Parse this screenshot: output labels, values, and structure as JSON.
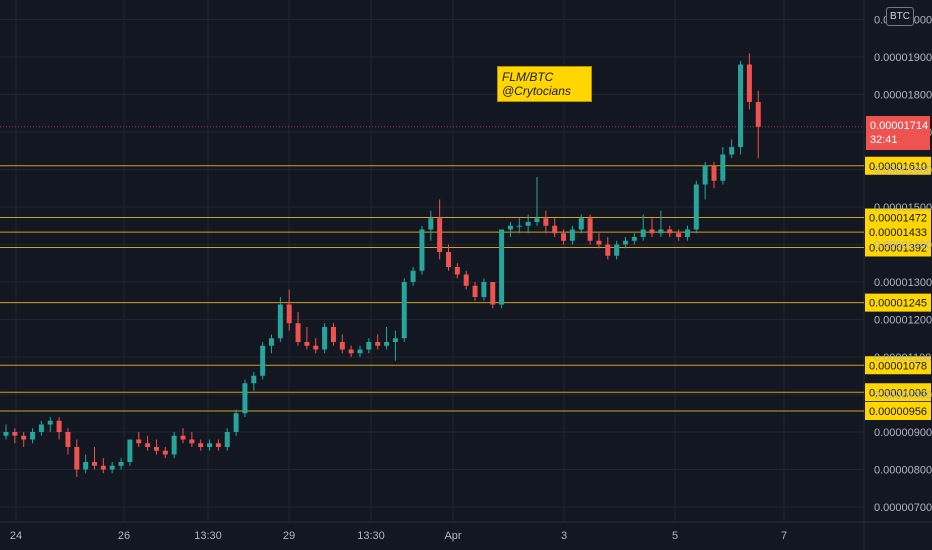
{
  "symbol_button": "BTC",
  "annotation": {
    "line1": "FLM/BTC",
    "line2": "@Crytocians"
  },
  "current_price": {
    "price": "0.00001714",
    "countdown": "32:41"
  },
  "colors": {
    "up": "#26a69a",
    "down": "#ef5350",
    "level": "#d4a017",
    "level_label": "#ffd600",
    "grid": "#1f2430",
    "bg": "#131722"
  },
  "chart_data": {
    "type": "candlestick",
    "title": "",
    "xlabel": "",
    "ylabel": "",
    "ylim": [
      6.8e-06,
      2.05e-05
    ],
    "x_ticks": [
      "24",
      "26",
      "13:30",
      "29",
      "13:30",
      "Apr",
      "3",
      "5",
      "7"
    ],
    "y_ticks": [
      "0.00000700",
      "0.00000800",
      "0.00000900",
      "0.00001000",
      "0.00001100",
      "0.00001200",
      "0.00001300",
      "0.00001400",
      "0.00001500",
      "0.00001600",
      "0.00001700",
      "0.00001800",
      "0.00001900",
      "0.00002000"
    ],
    "y_tick_values": [
      7e-06,
      8e-06,
      9e-06,
      1e-05,
      1.1e-05,
      1.2e-05,
      1.3e-05,
      1.4e-05,
      1.5e-05,
      1.6e-05,
      1.7e-05,
      1.8e-05,
      1.9e-05,
      2e-05
    ],
    "levels": [
      "0.00001610",
      "0.00001472",
      "0.00001433",
      "0.00001392",
      "0.00001245",
      "0.00001078",
      "0.00001006",
      "0.00000956"
    ],
    "level_values": [
      1.61e-05,
      1.472e-05,
      1.433e-05,
      1.392e-05,
      1.245e-05,
      1.078e-05,
      1.006e-05,
      9.56e-06
    ],
    "candles": [
      [
        8.9e-06,
        9.2e-06,
        8.8e-06,
        9e-06
      ],
      [
        9e-06,
        9.1e-06,
        8.7e-06,
        8.9e-06
      ],
      [
        8.9e-06,
        9e-06,
        8.6e-06,
        8.8e-06
      ],
      [
        8.8e-06,
        9.1e-06,
        8.7e-06,
        9e-06
      ],
      [
        9e-06,
        9.3e-06,
        8.9e-06,
        9.2e-06
      ],
      [
        9.2e-06,
        9.4e-06,
        9e-06,
        9.3e-06
      ],
      [
        9.3e-06,
        9.4e-06,
        8.8e-06,
        9e-06
      ],
      [
        9e-06,
        9.1e-06,
        8.4e-06,
        8.6e-06
      ],
      [
        8.6e-06,
        8.8e-06,
        7.8e-06,
        8e-06
      ],
      [
        8e-06,
        8.4e-06,
        7.9e-06,
        8.2e-06
      ],
      [
        8.2e-06,
        8.6e-06,
        8e-06,
        8.1e-06
      ],
      [
        8.1e-06,
        8.3e-06,
        7.9e-06,
        8e-06
      ],
      [
        8e-06,
        8.2e-06,
        7.9e-06,
        8.1e-06
      ],
      [
        8.1e-06,
        8.3e-06,
        8e-06,
        8.2e-06
      ],
      [
        8.2e-06,
        8.8e-06,
        8.1e-06,
        8.8e-06
      ],
      [
        8.8e-06,
        9e-06,
        8.6e-06,
        8.7e-06
      ],
      [
        8.7e-06,
        8.9e-06,
        8.5e-06,
        8.6e-06
      ],
      [
        8.6e-06,
        8.8e-06,
        8.4e-06,
        8.5e-06
      ],
      [
        8.5e-06,
        8.6e-06,
        8.3e-06,
        8.4e-06
      ],
      [
        8.4e-06,
        9e-06,
        8.3e-06,
        8.9e-06
      ],
      [
        8.9e-06,
        9.1e-06,
        8.7e-06,
        8.8e-06
      ],
      [
        8.8e-06,
        9e-06,
        8.6e-06,
        8.7e-06
      ],
      [
        8.7e-06,
        8.8e-06,
        8.5e-06,
        8.6e-06
      ],
      [
        8.6e-06,
        8.8e-06,
        8.5e-06,
        8.7e-06
      ],
      [
        8.7e-06,
        8.8e-06,
        8.5e-06,
        8.6e-06
      ],
      [
        8.6e-06,
        9.1e-06,
        8.5e-06,
        9e-06
      ],
      [
        9e-06,
        9.6e-06,
        8.9e-06,
        9.5e-06
      ],
      [
        9.5e-06,
        1.04e-05,
        9.4e-06,
        1.03e-05
      ],
      [
        1.03e-05,
        1.06e-05,
        1.01e-05,
        1.05e-05
      ],
      [
        1.05e-05,
        1.14e-05,
        1.04e-05,
        1.13e-05
      ],
      [
        1.13e-05,
        1.16e-05,
        1.11e-05,
        1.15e-05
      ],
      [
        1.15e-05,
        1.26e-05,
        1.14e-05,
        1.24e-05
      ],
      [
        1.24e-05,
        1.28e-05,
        1.17e-05,
        1.19e-05
      ],
      [
        1.19e-05,
        1.22e-05,
        1.13e-05,
        1.14e-05
      ],
      [
        1.14e-05,
        1.18e-05,
        1.12e-05,
        1.13e-05
      ],
      [
        1.13e-05,
        1.15e-05,
        1.11e-05,
        1.12e-05
      ],
      [
        1.12e-05,
        1.19e-05,
        1.11e-05,
        1.18e-05
      ],
      [
        1.18e-05,
        1.19e-05,
        1.13e-05,
        1.14e-05
      ],
      [
        1.14e-05,
        1.16e-05,
        1.11e-05,
        1.12e-05
      ],
      [
        1.12e-05,
        1.13e-05,
        1.1e-05,
        1.11e-05
      ],
      [
        1.11e-05,
        1.13e-05,
        1.1e-05,
        1.12e-05
      ],
      [
        1.12e-05,
        1.15e-05,
        1.11e-05,
        1.14e-05
      ],
      [
        1.14e-05,
        1.16e-05,
        1.12e-05,
        1.13e-05
      ],
      [
        1.13e-05,
        1.18e-05,
        1.12e-05,
        1.14e-05
      ],
      [
        1.14e-05,
        1.17e-05,
        1.09e-05,
        1.15e-05
      ],
      [
        1.15e-05,
        1.31e-05,
        1.14e-05,
        1.3e-05
      ],
      [
        1.3e-05,
        1.34e-05,
        1.29e-05,
        1.33e-05
      ],
      [
        1.33e-05,
        1.45e-05,
        1.32e-05,
        1.44e-05
      ],
      [
        1.44e-05,
        1.49e-05,
        1.41e-05,
        1.47e-05
      ],
      [
        1.47e-05,
        1.52e-05,
        1.36e-05,
        1.38e-05
      ],
      [
        1.38e-05,
        1.4e-05,
        1.33e-05,
        1.34e-05
      ],
      [
        1.34e-05,
        1.35e-05,
        1.31e-05,
        1.32e-05
      ],
      [
        1.32e-05,
        1.33e-05,
        1.28e-05,
        1.29e-05
      ],
      [
        1.29e-05,
        1.3e-05,
        1.25e-05,
        1.26e-05
      ],
      [
        1.26e-05,
        1.31e-05,
        1.25e-05,
        1.3e-05
      ],
      [
        1.3e-05,
        1.3e-05,
        1.23e-05,
        1.24e-05
      ],
      [
        1.24e-05,
        1.44e-05,
        1.23e-05,
        1.44e-05
      ],
      [
        1.44e-05,
        1.46e-05,
        1.42e-05,
        1.45e-05
      ],
      [
        1.45e-05,
        1.47e-05,
        1.43e-05,
        1.45e-05
      ],
      [
        1.45e-05,
        1.48e-05,
        1.43e-05,
        1.46e-05
      ],
      [
        1.46e-05,
        1.58e-05,
        1.45e-05,
        1.47e-05
      ],
      [
        1.47e-05,
        1.49e-05,
        1.43e-05,
        1.45e-05
      ],
      [
        1.45e-05,
        1.47e-05,
        1.42e-05,
        1.43e-05
      ],
      [
        1.43e-05,
        1.44e-05,
        1.4e-05,
        1.41e-05
      ],
      [
        1.41e-05,
        1.45e-05,
        1.4e-05,
        1.44e-05
      ],
      [
        1.44e-05,
        1.48e-05,
        1.43e-05,
        1.47e-05
      ],
      [
        1.47e-05,
        1.48e-05,
        1.4e-05,
        1.41e-05
      ],
      [
        1.41e-05,
        1.43e-05,
        1.39e-05,
        1.4e-05
      ],
      [
        1.4e-05,
        1.42e-05,
        1.36e-05,
        1.37e-05
      ],
      [
        1.37e-05,
        1.41e-05,
        1.36e-05,
        1.4e-05
      ],
      [
        1.4e-05,
        1.42e-05,
        1.39e-05,
        1.41e-05
      ],
      [
        1.41e-05,
        1.43e-05,
        1.4e-05,
        1.42e-05
      ],
      [
        1.42e-05,
        1.48e-05,
        1.41e-05,
        1.44e-05
      ],
      [
        1.44e-05,
        1.47e-05,
        1.42e-05,
        1.43e-05
      ],
      [
        1.43e-05,
        1.49e-05,
        1.42e-05,
        1.44e-05
      ],
      [
        1.44e-05,
        1.45e-05,
        1.42e-05,
        1.43e-05
      ],
      [
        1.43e-05,
        1.44e-05,
        1.41e-05,
        1.42e-05
      ],
      [
        1.42e-05,
        1.45e-05,
        1.41e-05,
        1.44e-05
      ],
      [
        1.44e-05,
        1.57e-05,
        1.43e-05,
        1.56e-05
      ],
      [
        1.56e-05,
        1.62e-05,
        1.52e-05,
        1.61e-05
      ],
      [
        1.61e-05,
        1.62e-05,
        1.55e-05,
        1.57e-05
      ],
      [
        1.57e-05,
        1.66e-05,
        1.56e-05,
        1.64e-05
      ],
      [
        1.64e-05,
        1.68e-05,
        1.63e-05,
        1.66e-05
      ],
      [
        1.66e-05,
        1.89e-05,
        1.64e-05,
        1.88e-05
      ],
      [
        1.88e-05,
        1.91e-05,
        1.76e-05,
        1.78e-05
      ],
      [
        1.78e-05,
        1.81e-05,
        1.63e-05,
        1.714e-05
      ]
    ]
  }
}
